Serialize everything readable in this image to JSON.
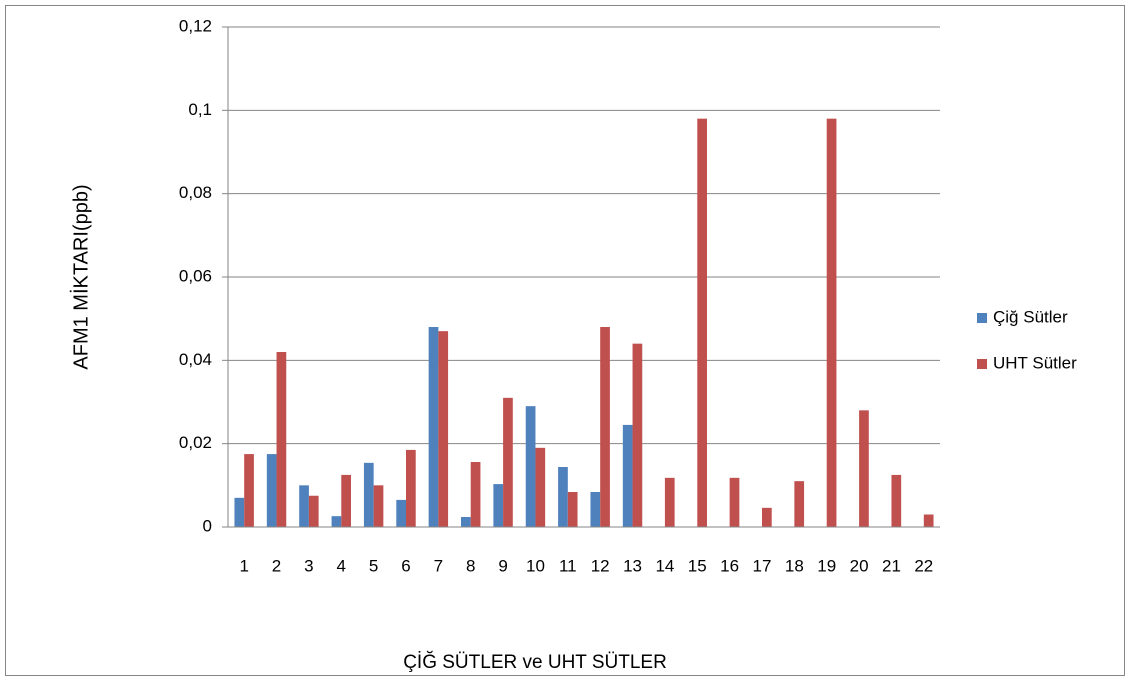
{
  "chart_data": {
    "type": "bar",
    "y_label": "AFM1  MİKTARI(ppb)",
    "x_label": "ÇİĞ SÜTLER  ve UHT SÜTLER",
    "categories": [
      "1",
      "2",
      "3",
      "4",
      "5",
      "6",
      "7",
      "8",
      "9",
      "10",
      "11",
      "12",
      "13",
      "14",
      "15",
      "16",
      "17",
      "18",
      "19",
      "20",
      "21",
      "22"
    ],
    "series": [
      {
        "name": "Çiğ Sütler",
        "color": "#4f81bd",
        "values": [
          0.007,
          0.0175,
          0.01,
          0.0026,
          0.0154,
          0.0065,
          0.048,
          0.0024,
          0.0103,
          0.029,
          0.0144,
          0.0084,
          0.0245,
          null,
          null,
          null,
          null,
          null,
          null,
          null,
          null,
          null
        ]
      },
      {
        "name": "UHT Sütler",
        "color": "#c0504d",
        "values": [
          0.0175,
          0.042,
          0.0075,
          0.0125,
          0.01,
          0.0185,
          0.047,
          0.0156,
          0.031,
          0.019,
          0.0084,
          0.048,
          0.044,
          0.0118,
          0.098,
          0.0118,
          0.0046,
          0.011,
          0.098,
          0.028,
          0.0125,
          0.003
        ]
      }
    ],
    "ylim": [
      0,
      0.12
    ],
    "yticks": [
      0,
      {
        "value": 0.02,
        "label": "0,02"
      },
      {
        "value": 0.04,
        "label": "0,04"
      },
      {
        "value": 0.06,
        "label": "0,06"
      },
      {
        "value": 0.08,
        "label": "0,08"
      },
      {
        "value": 0.1,
        "label": "0,1"
      },
      {
        "value": 0.12,
        "label": "0,12"
      }
    ],
    "grid": true,
    "legend": "right"
  }
}
